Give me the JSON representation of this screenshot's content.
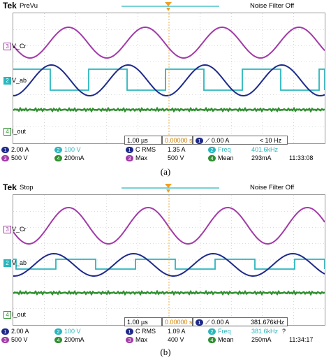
{
  "colors": {
    "ch1": "#1e2a8a",
    "ch2": "#2ab6bd",
    "ch3": "#a23aa8",
    "ch4": "#2f8f2f",
    "marker": "#f0a020",
    "grid": "#b8b8b8"
  },
  "panels": [
    {
      "brand": "Tek",
      "mode": "PreVu",
      "noise_filter": "Noise Filter Off",
      "labels": {
        "ch3": "3",
        "v_cr": "V_Cr",
        "ch2": "2",
        "v_ab": "V_ab",
        "ch4": "4",
        "i_out": "I_out"
      },
      "timebase": {
        "scale": "1.00 µs",
        "position": "0.00000 s",
        "trigger_ch": "1",
        "trigger_level": "0.00 A",
        "frequency": "< 10 Hz"
      },
      "readouts": {
        "ch1": {
          "num": "1",
          "scale": "2.00 A"
        },
        "ch2": {
          "num": "2",
          "scale": "100 V"
        },
        "ch3": {
          "num": "3",
          "scale": "500 V"
        },
        "ch4": {
          "num": "4",
          "scale": "200mA"
        },
        "m1": {
          "num": "1",
          "label": "C RMS",
          "value": "1.35 A"
        },
        "m2": {
          "num": "2",
          "label": "Freq",
          "value": "401.6kHz"
        },
        "m3": {
          "num": "3",
          "label": "Max",
          "value": "500 V"
        },
        "m4": {
          "num": "4",
          "label": "Mean",
          "value": "293mA"
        }
      },
      "time": "11:33:08",
      "caption": "(a)"
    },
    {
      "brand": "Tek",
      "mode": "Stop",
      "noise_filter": "Noise Filter Off",
      "labels": {
        "ch3": "3",
        "v_cr": "V_Cr",
        "ch2": "2",
        "v_ab": "V_ab",
        "ch4": "4",
        "i_out": "I_out"
      },
      "timebase": {
        "scale": "1.00 µs",
        "position": "0.00000 s",
        "trigger_ch": "1",
        "trigger_level": "0.00 A",
        "frequency": "381.676kHz"
      },
      "readouts": {
        "ch1": {
          "num": "1",
          "scale": "2.00 A"
        },
        "ch2": {
          "num": "2",
          "scale": "100 V"
        },
        "ch3": {
          "num": "3",
          "scale": "500 V"
        },
        "ch4": {
          "num": "4",
          "scale": "200mA"
        },
        "m1": {
          "num": "1",
          "label": "C RMS",
          "value": "1.09 A"
        },
        "m2": {
          "num": "2",
          "label": "Freq",
          "value": "381.6kHz",
          "flag": "?"
        },
        "m3": {
          "num": "3",
          "label": "Max",
          "value": "400 V"
        },
        "m4": {
          "num": "4",
          "label": "Mean",
          "value": "250mA"
        }
      },
      "time": "11:34:17",
      "caption": "(b)"
    }
  ]
}
